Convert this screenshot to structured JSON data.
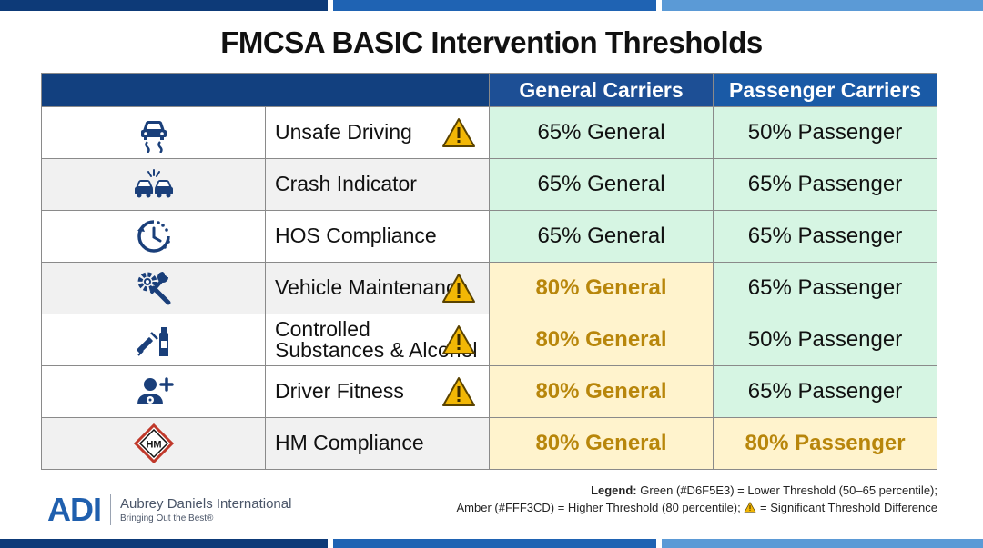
{
  "title": "FMCSA BASIC Intervention Thresholds",
  "colors": {
    "header_dark": "#12407f",
    "header_general": "#1d4f95",
    "header_passenger": "#1a5aa6",
    "green": "#D6F5E3",
    "amber": "#FFF3CD",
    "amber_text": "#b8860b",
    "warning": "#f2b705",
    "brand_blue": "#1f5fae"
  },
  "table": {
    "headers": {
      "category": "",
      "general": "General Carriers",
      "passenger": "Passenger Carriers"
    },
    "rows": [
      {
        "icon": "slippery-road-car-icon",
        "label": "Unsafe Driving",
        "warning": true,
        "general": "65% General",
        "general_level": "green",
        "passenger": "50% Passenger",
        "passenger_level": "green"
      },
      {
        "icon": "car-crash-icon",
        "label": "Crash Indicator",
        "warning": false,
        "general": "65% General",
        "general_level": "green",
        "passenger": "65% Passenger",
        "passenger_level": "green"
      },
      {
        "icon": "clock-history-icon",
        "label": "HOS Compliance",
        "warning": false,
        "general": "65% General",
        "general_level": "green",
        "passenger": "65% Passenger",
        "passenger_level": "green"
      },
      {
        "icon": "tools-gear-icon",
        "label": "Vehicle Maintenance",
        "warning": true,
        "general": "80% General",
        "general_level": "amber",
        "passenger": "65% Passenger",
        "passenger_level": "green"
      },
      {
        "icon": "syringe-bottle-icon",
        "label": "Controlled Substances & Alcohol",
        "warning": true,
        "general": "80% General",
        "general_level": "amber",
        "passenger": "50% Passenger",
        "passenger_level": "green"
      },
      {
        "icon": "user-plus-icon",
        "label": "Driver Fitness",
        "warning": true,
        "general": "80% General",
        "general_level": "amber",
        "passenger": "65% Passenger",
        "passenger_level": "green"
      },
      {
        "icon": "hazmat-placard-icon",
        "icon_text": "HM",
        "label": "HM Compliance",
        "warning": false,
        "general": "80% General",
        "general_level": "amber",
        "passenger": "80% Passenger",
        "passenger_level": "amber"
      }
    ]
  },
  "brand": {
    "mark": "ADI",
    "name": "Aubrey Daniels International",
    "tagline": "Bringing Out the Best®"
  },
  "legend": {
    "label": "Legend:",
    "line1": "Green (#D6F5E3) = Lower Threshold (50–65 percentile);",
    "line2_a": "Amber (#FFF3CD) = Higher Threshold (80 percentile);",
    "line2_b": "= Significant Threshold Difference"
  }
}
